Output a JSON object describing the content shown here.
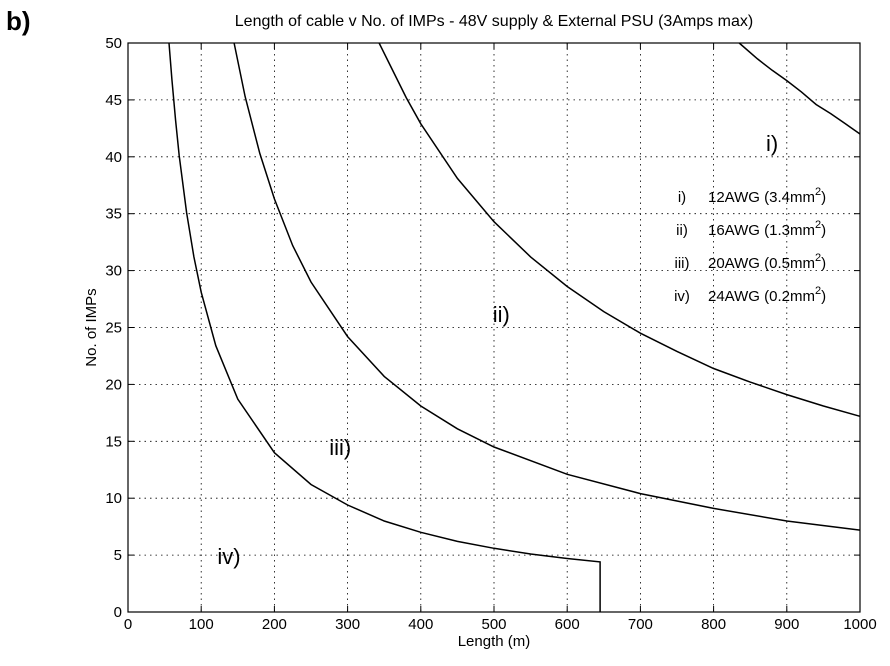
{
  "panel_label": "b)",
  "chart_data": {
    "type": "line",
    "title": "Length of cable v No. of IMPs  -  48V supply & External PSU (3Amps max)",
    "xlabel": "Length (m)",
    "ylabel": "No. of IMPs",
    "xlim": [
      0,
      1000
    ],
    "ylim": [
      0,
      50
    ],
    "x_ticks": [
      0,
      100,
      200,
      300,
      400,
      500,
      600,
      700,
      800,
      900,
      1000
    ],
    "y_ticks": [
      0,
      5,
      10,
      15,
      20,
      25,
      30,
      35,
      40,
      45,
      50
    ],
    "grid": true,
    "series": [
      {
        "name": "i)",
        "x": [
          835,
          860,
          880,
          900,
          920,
          940,
          960,
          980,
          1000
        ],
        "y": [
          50,
          48.6,
          47.6,
          46.7,
          45.7,
          44.6,
          43.8,
          42.9,
          42.0
        ]
      },
      {
        "name": "ii)",
        "x": [
          343,
          360,
          380,
          400,
          450,
          500,
          550,
          600,
          650,
          700,
          750,
          800,
          850,
          900,
          950,
          1000
        ],
        "y": [
          50,
          47.8,
          45.2,
          42.9,
          38.1,
          34.3,
          31.2,
          28.6,
          26.4,
          24.5,
          22.9,
          21.4,
          20.2,
          19.1,
          18.1,
          17.2
        ]
      },
      {
        "name": "iii)",
        "x": [
          145,
          160,
          180,
          200,
          225,
          250,
          300,
          350,
          400,
          450,
          500,
          600,
          700,
          800,
          900,
          1000
        ],
        "y": [
          50,
          45.3,
          40.3,
          36.3,
          32.2,
          29.0,
          24.2,
          20.7,
          18.1,
          16.1,
          14.5,
          12.1,
          10.4,
          9.1,
          8.0,
          7.2
        ]
      },
      {
        "name": "iv)",
        "x": [
          56,
          60,
          65,
          70,
          80,
          90,
          100,
          120,
          150,
          200,
          250,
          300,
          350,
          400,
          450,
          500,
          550,
          600,
          645,
          645
        ],
        "y": [
          50,
          46.8,
          43.2,
          40.1,
          35.1,
          31.2,
          28.1,
          23.4,
          18.7,
          14.0,
          11.2,
          9.4,
          8.0,
          7.0,
          6.2,
          5.6,
          5.1,
          4.7,
          4.4,
          0
        ]
      }
    ],
    "curve_labels": [
      {
        "text": "i)",
        "x": 880,
        "y": 40.5
      },
      {
        "text": "ii)",
        "x": 510,
        "y": 25.5
      },
      {
        "text": "iii)",
        "x": 290,
        "y": 13.8
      },
      {
        "text": "iv)",
        "x": 138,
        "y": 4.2
      }
    ],
    "legend": {
      "placement": "right",
      "entries": [
        {
          "id": "i)",
          "name": "12AWG (3.4mm",
          "sup": "2",
          "close": ")"
        },
        {
          "id": "ii)",
          "name": "16AWG (1.3mm",
          "sup": "2",
          "close": ")"
        },
        {
          "id": "iii)",
          "name": "20AWG (0.5mm",
          "sup": "2",
          "close": ")"
        },
        {
          "id": "iv)",
          "name": "24AWG (0.2mm",
          "sup": "2",
          "close": ")"
        }
      ]
    }
  }
}
